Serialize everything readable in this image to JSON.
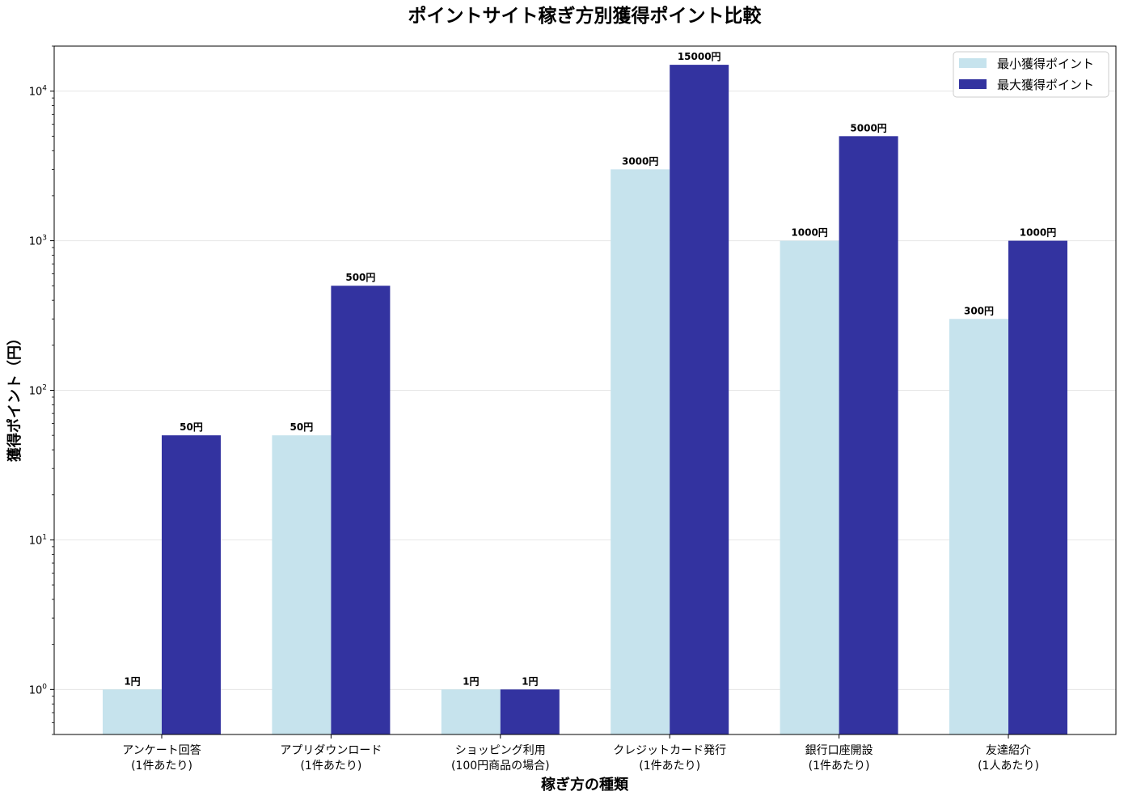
{
  "chart_data": {
    "type": "bar",
    "title": "ポイントサイト稼ぎ方別獲得ポイント比較",
    "xlabel": "稼ぎ方の種類",
    "ylabel": "獲得ポイント（円）",
    "yscale": "log",
    "ylim": [
      0.5,
      20000
    ],
    "grid": "y",
    "legend_position": "top-right",
    "categories": [
      [
        "アンケート回答",
        "(1件あたり)"
      ],
      [
        "アプリダウンロード",
        "(1件あたり)"
      ],
      [
        "ショッピング利用",
        "(100円商品の場合)"
      ],
      [
        "クレジットカード発行",
        "(1件あたり)"
      ],
      [
        "銀行口座開設",
        "(1件あたり)"
      ],
      [
        "友達紹介",
        "(1人あたり)"
      ]
    ],
    "series": [
      {
        "name": "最小獲得ポイント",
        "color": "#c6e3ed",
        "values": [
          1,
          50,
          1,
          3000,
          1000,
          300
        ],
        "labels": [
          "1円",
          "50円",
          "1円",
          "3000円",
          "1000円",
          "300円"
        ]
      },
      {
        "name": "最大獲得ポイント",
        "color": "#3333a0",
        "values": [
          50,
          500,
          1,
          15000,
          5000,
          1000
        ],
        "labels": [
          "50円",
          "500円",
          "1円",
          "15000円",
          "5000円",
          "1000円"
        ]
      }
    ],
    "yticks": [
      {
        "base": "10",
        "exp": "0",
        "value": 1
      },
      {
        "base": "10",
        "exp": "1",
        "value": 10
      },
      {
        "base": "10",
        "exp": "2",
        "value": 100
      },
      {
        "base": "10",
        "exp": "3",
        "value": 1000
      },
      {
        "base": "10",
        "exp": "4",
        "value": 10000
      }
    ]
  }
}
